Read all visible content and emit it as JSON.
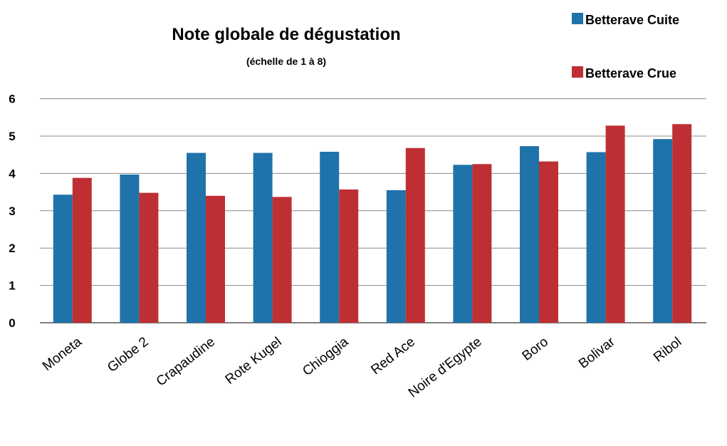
{
  "chart_data": {
    "type": "bar",
    "title": "Note globale de dégustation",
    "subtitle": "(échelle de 1 à 8)",
    "xlabel": "",
    "ylabel": "",
    "ylim": [
      0,
      6
    ],
    "yticks": [
      0,
      1,
      2,
      3,
      4,
      5,
      6
    ],
    "grid": true,
    "legend_position": "top-right",
    "categories": [
      "Moneta",
      "Globe 2",
      "Crapaudine",
      "Rote Kugel",
      "Chioggia",
      "Red Ace",
      "Noire d'Egypte",
      "Boro",
      "Bolivar",
      "Ribol"
    ],
    "series": [
      {
        "name": "Betterave Cuite",
        "color": "#1f73aa",
        "values": [
          3.43,
          3.97,
          4.55,
          4.55,
          4.58,
          3.55,
          4.23,
          4.73,
          4.57,
          4.92
        ]
      },
      {
        "name": "Betterave Crue",
        "color": "#be2f33",
        "values": [
          3.88,
          3.48,
          3.4,
          3.37,
          3.57,
          4.68,
          4.25,
          4.32,
          5.28,
          5.32
        ]
      }
    ]
  }
}
